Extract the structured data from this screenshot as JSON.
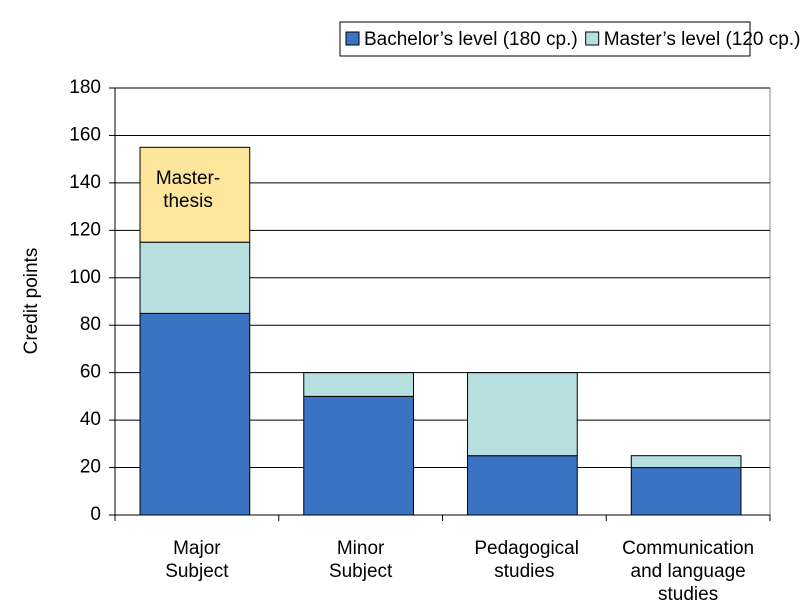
{
  "chart_data": {
    "type": "bar",
    "stacked": true,
    "categories": [
      "Major Subject",
      "Minor Subject",
      "Pedagogical studies",
      "Communication and language studies"
    ],
    "series": [
      {
        "name": "Bachelor’s level (180 cp.)",
        "color": "#3a73c4",
        "values": [
          85,
          50,
          25,
          20
        ]
      },
      {
        "name": "Master’s level  (120 cp.)",
        "color": "#b8dfe0",
        "values": [
          30,
          10,
          35,
          5
        ]
      },
      {
        "name": "Master-thesis",
        "color": "#fde69c",
        "values": [
          40,
          null,
          null,
          null
        ],
        "label_inside": true
      }
    ],
    "y_label": "Credit points",
    "ylim": [
      0,
      180
    ],
    "yticks": [
      0,
      20,
      40,
      60,
      80,
      100,
      120,
      140,
      160,
      180
    ],
    "grid": true,
    "legend": "top"
  }
}
